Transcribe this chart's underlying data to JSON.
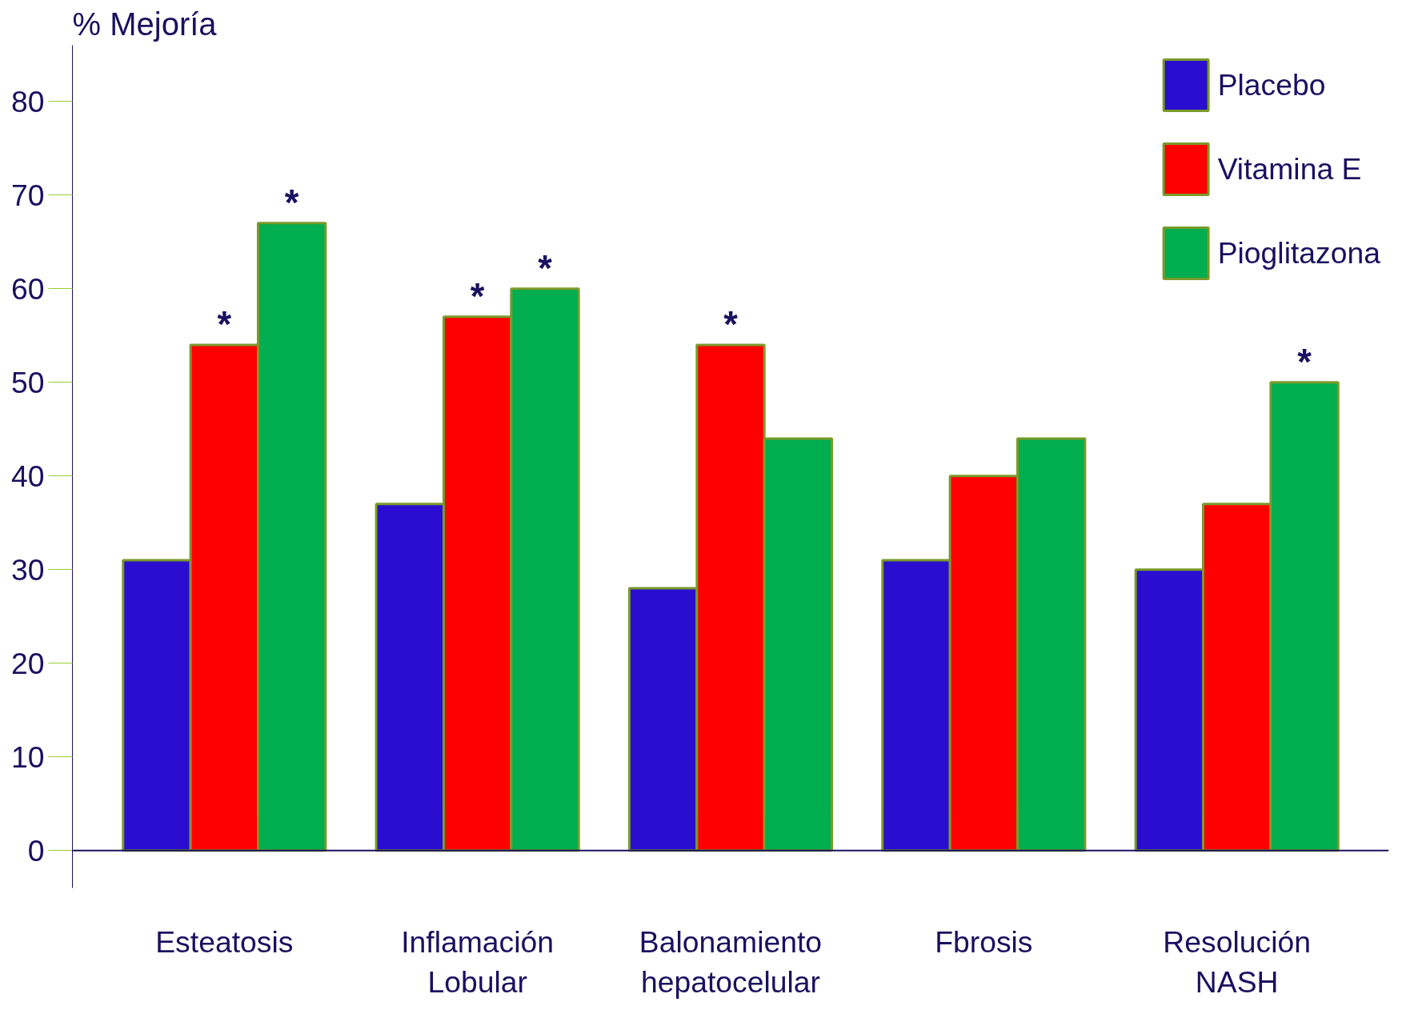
{
  "chart_data": {
    "type": "bar",
    "ylabel": "% Mejoría",
    "categories": [
      "Esteatosis",
      "Inflamación\nLobular",
      "Balonamiento\nhepatocelular",
      "Fbrosis",
      "Resolución\nNASH"
    ],
    "series": [
      {
        "name": "Placebo",
        "color": "#2a0dcf",
        "values": [
          31,
          37,
          28,
          31,
          30
        ]
      },
      {
        "name": "Vitamina E",
        "color": "#ff0000",
        "values": [
          54,
          57,
          54,
          40,
          37
        ],
        "value_labels": [
          "*",
          "*",
          "*",
          null,
          null
        ]
      },
      {
        "name": "Pioglitazona",
        "color": "#00ad4f",
        "values": [
          67,
          60,
          44,
          44,
          50
        ],
        "value_labels": [
          "*",
          "*",
          null,
          null,
          "*"
        ]
      }
    ],
    "ylim": [
      -4,
      86
    ],
    "yticks": [
      0,
      10,
      20,
      30,
      40,
      50,
      60,
      70,
      80
    ],
    "grid": false,
    "legend": "top right"
  }
}
